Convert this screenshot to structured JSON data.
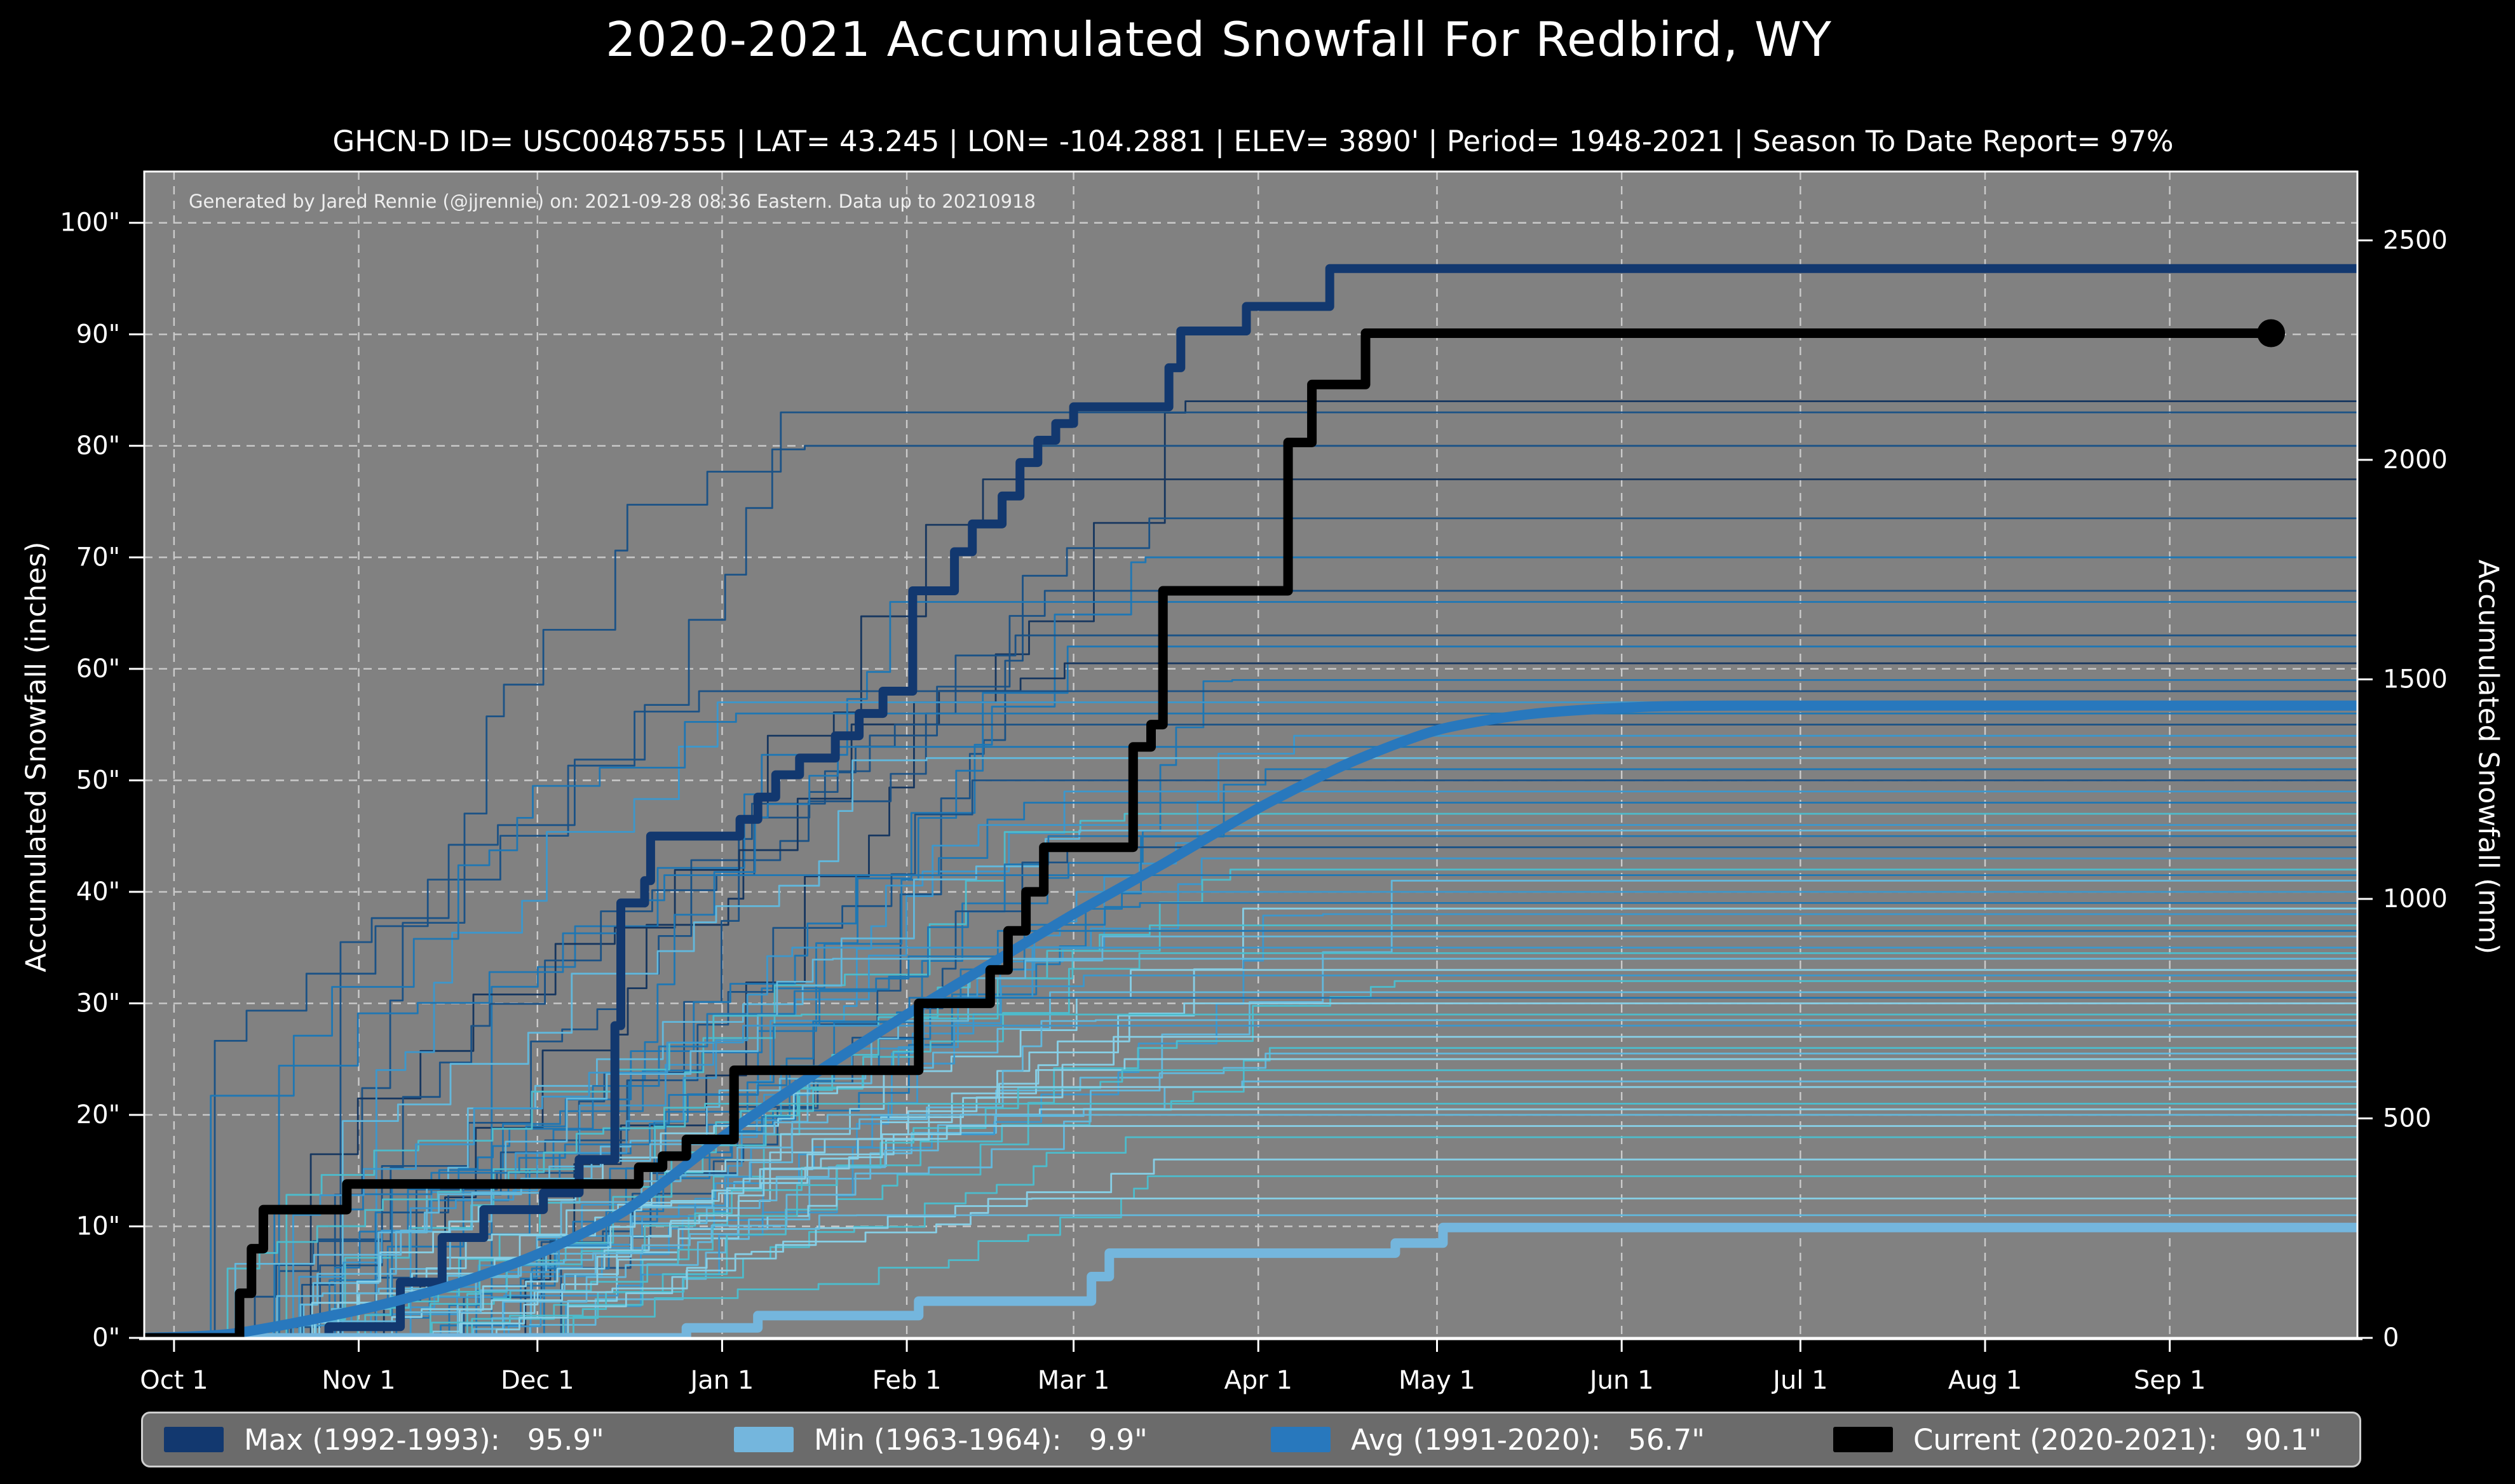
{
  "header": {
    "title": "2020-2021 Accumulated Snowfall For Redbird, WY",
    "subtitle": "GHCN-D ID= USC00487555 | LAT= 43.245 | LON= -104.2881 | ELEV= 3890' | Period= 1948-2021 | Season To Date Report= 97%"
  },
  "annotation": "Generated by Jared Rennie (@jjrennie) on: 2021-09-28 08:36 Eastern. Data up to 20210918",
  "axes": {
    "left": {
      "label": "Accumulated Snowfall (inches)",
      "tick_values": [
        0,
        10,
        20,
        30,
        40,
        50,
        60,
        70,
        80,
        90,
        100
      ],
      "tick_labels": [
        "0\"",
        "10\"",
        "20\"",
        "30\"",
        "40\"",
        "50\"",
        "60\"",
        "70\"",
        "80\"",
        "90\"",
        "100\""
      ]
    },
    "right": {
      "label": "Accumulated Snowfall (mm)",
      "tick_values_mm": [
        0,
        500,
        1000,
        1500,
        2000,
        2500
      ],
      "tick_labels": [
        "0",
        "500",
        "1000",
        "1500",
        "2000",
        "2500"
      ]
    },
    "bottom": {
      "tick_days": [
        0,
        31,
        61,
        92,
        123,
        151,
        182,
        212,
        243,
        273,
        304,
        335
      ],
      "tick_labels": [
        "Oct 1",
        "Nov 1",
        "Dec 1",
        "Jan 1",
        "Feb 1",
        "Mar 1",
        "Apr 1",
        "May 1",
        "Jun 1",
        "Jul 1",
        "Aug 1",
        "Sep 1"
      ]
    }
  },
  "legend": {
    "entries": [
      {
        "label": "Max (1992-1993):   95.9\"",
        "color": "#12386f"
      },
      {
        "label": "Min (1963-1964):   9.9\"",
        "color": "#74b6dd"
      },
      {
        "label": "Avg (1991-2020):   56.7\"",
        "color": "#2878bd"
      },
      {
        "label": "Current (2020-2021):   90.1\"",
        "color": "#000000"
      }
    ]
  },
  "style": {
    "plot_bg": "#818181",
    "grid_color": "#d4d4d4",
    "spine_color": "#ffffff",
    "page_bg": "#000000",
    "text_color": "#ffffff"
  },
  "chart_data": {
    "type": "line",
    "title": "2020-2021 Accumulated Snowfall For Redbird, WY",
    "x_unit": "days since Oct 1 (month ticks Oct 1 - Sep 1)",
    "xlim_days": [
      -5,
      366.5
    ],
    "ylim_inches": [
      0,
      104.6
    ],
    "grid": true,
    "legend_position": "bottom",
    "series": [
      {
        "name": "Max (1992-1993)",
        "total_inches": 95.9,
        "color": "#12386f",
        "width": 14,
        "style": "steps",
        "points": [
          [
            -5,
            0
          ],
          [
            26,
            1
          ],
          [
            38,
            5
          ],
          [
            45,
            9
          ],
          [
            52,
            11.5
          ],
          [
            62,
            13
          ],
          [
            68,
            16
          ],
          [
            74,
            28
          ],
          [
            75,
            39
          ],
          [
            79,
            41
          ],
          [
            80,
            45
          ],
          [
            95,
            46.5
          ],
          [
            98,
            48.5
          ],
          [
            101,
            50.5
          ],
          [
            105,
            52
          ],
          [
            111,
            54
          ],
          [
            115,
            56
          ],
          [
            119,
            58
          ],
          [
            124,
            67
          ],
          [
            131,
            70.5
          ],
          [
            134,
            73
          ],
          [
            139,
            75.5
          ],
          [
            142,
            78.5
          ],
          [
            145,
            80.5
          ],
          [
            148,
            82
          ],
          [
            151,
            83.5
          ],
          [
            167,
            87
          ],
          [
            169,
            90.3
          ],
          [
            180,
            92.5
          ],
          [
            194,
            95.9
          ],
          [
            366.5,
            95.9
          ]
        ]
      },
      {
        "name": "Min (1963-1964)",
        "total_inches": 9.9,
        "color": "#74b6dd",
        "width": 15,
        "style": "steps",
        "points": [
          [
            -5,
            0
          ],
          [
            86,
            0.9
          ],
          [
            98,
            2.0
          ],
          [
            125,
            3.3
          ],
          [
            154,
            5.5
          ],
          [
            157,
            7.6
          ],
          [
            205,
            8.5
          ],
          [
            213,
            9.9
          ],
          [
            366.5,
            9.9
          ]
        ]
      },
      {
        "name": "Avg (1991-2020)",
        "total_inches": 56.7,
        "color": "#2878bd",
        "width": 16,
        "style": "smooth",
        "points": [
          [
            -5,
            0
          ],
          [
            10,
            0.4
          ],
          [
            31,
            2.5
          ],
          [
            46,
            4.6
          ],
          [
            61,
            7.5
          ],
          [
            76,
            11.5
          ],
          [
            92,
            18
          ],
          [
            107,
            23.5
          ],
          [
            123,
            29
          ],
          [
            137,
            33.5
          ],
          [
            151,
            38
          ],
          [
            166,
            42.5
          ],
          [
            182,
            47.5
          ],
          [
            197,
            51.5
          ],
          [
            212,
            54.5
          ],
          [
            227,
            55.9
          ],
          [
            243,
            56.5
          ],
          [
            262,
            56.7
          ],
          [
            366.5,
            56.7
          ]
        ]
      },
      {
        "name": "Current (2020-2021)",
        "total_inches": 90.1,
        "color": "#000000",
        "width": 15,
        "style": "steps",
        "end_marker_day": 352,
        "end_marker_radius": 22,
        "points": [
          [
            -5,
            0
          ],
          [
            10,
            0
          ],
          [
            11,
            4
          ],
          [
            13,
            8
          ],
          [
            15,
            11.5
          ],
          [
            29,
            13.8
          ],
          [
            77,
            13.8
          ],
          [
            78,
            15.3
          ],
          [
            82,
            16.3
          ],
          [
            86,
            17.8
          ],
          [
            94,
            24
          ],
          [
            125,
            30
          ],
          [
            137,
            33
          ],
          [
            140,
            36.5
          ],
          [
            143,
            40
          ],
          [
            146,
            44
          ],
          [
            161,
            53
          ],
          [
            164,
            55
          ],
          [
            166,
            67
          ],
          [
            187,
            80.3
          ],
          [
            191,
            85.5
          ],
          [
            200,
            90.1
          ],
          [
            352,
            90.1
          ]
        ]
      }
    ],
    "background_years": {
      "description": "Thin step lines: each snowfall season 1948-2021, drawn as [final_total_inches, palette_index, seed]; step paths accumulate Oct-May then stay flat.",
      "palette": [
        "#16365f",
        "#1b5286",
        "#1f77b4",
        "#3c97cc",
        "#62b8dc",
        "#86cfe6",
        "#4dbccc"
      ],
      "width": 2.8,
      "lines": [
        [
          84,
          0,
          1
        ],
        [
          83,
          1,
          2
        ],
        [
          80,
          1,
          3
        ],
        [
          77,
          0,
          4
        ],
        [
          73.5,
          1,
          5
        ],
        [
          70,
          2,
          6
        ],
        [
          67,
          1,
          7
        ],
        [
          66,
          2,
          8
        ],
        [
          63,
          1,
          9
        ],
        [
          62,
          2,
          10
        ],
        [
          60.5,
          0,
          11
        ],
        [
          59,
          2,
          12
        ],
        [
          58,
          1,
          13
        ],
        [
          57,
          3,
          14
        ],
        [
          56,
          2,
          15
        ],
        [
          55,
          1,
          16
        ],
        [
          54,
          3,
          17
        ],
        [
          53,
          2,
          18
        ],
        [
          52,
          4,
          19
        ],
        [
          51,
          2,
          20
        ],
        [
          50,
          1,
          21
        ],
        [
          49,
          3,
          22
        ],
        [
          48,
          2,
          23
        ],
        [
          47,
          6,
          24
        ],
        [
          46,
          3,
          25
        ],
        [
          45.5,
          4,
          26
        ],
        [
          45,
          2,
          27
        ],
        [
          44,
          1,
          28
        ],
        [
          43,
          3,
          29
        ],
        [
          42,
          6,
          30
        ],
        [
          41.5,
          2,
          31
        ],
        [
          41,
          4,
          32
        ],
        [
          40,
          3,
          33
        ],
        [
          39,
          2,
          34
        ],
        [
          38.5,
          5,
          35
        ],
        [
          38,
          3,
          36
        ],
        [
          37,
          6,
          37
        ],
        [
          36.5,
          2,
          38
        ],
        [
          36,
          4,
          39
        ],
        [
          35,
          3,
          40
        ],
        [
          34.5,
          6,
          41
        ],
        [
          34,
          4,
          42
        ],
        [
          33,
          5,
          43
        ],
        [
          32.5,
          3,
          44
        ],
        [
          32,
          6,
          45
        ],
        [
          31,
          4,
          46
        ],
        [
          30.5,
          2,
          47
        ],
        [
          30,
          5,
          48
        ],
        [
          29,
          6,
          49
        ],
        [
          28.5,
          4,
          50
        ],
        [
          28,
          3,
          51
        ],
        [
          27,
          5,
          52
        ],
        [
          26,
          6,
          53
        ],
        [
          25.5,
          4,
          54
        ],
        [
          25,
          5,
          55
        ],
        [
          24,
          6,
          56
        ],
        [
          23,
          4,
          57
        ],
        [
          22.5,
          5,
          58
        ],
        [
          21,
          6,
          59
        ],
        [
          20.5,
          5,
          60
        ],
        [
          20,
          4,
          61
        ],
        [
          19,
          5,
          62
        ],
        [
          18,
          6,
          63
        ],
        [
          16,
          5,
          64
        ],
        [
          14.5,
          6,
          65
        ],
        [
          12.5,
          5,
          66
        ],
        [
          11,
          4,
          67
        ]
      ]
    }
  }
}
